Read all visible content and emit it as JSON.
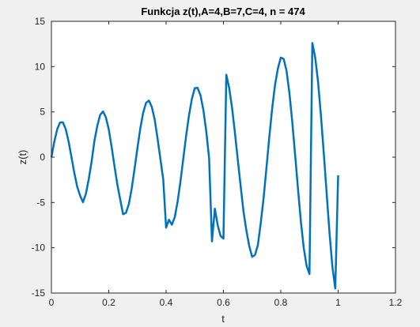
{
  "chart_data": {
    "type": "line",
    "title": "Funkcja z(t),A=4,B=7,C=4, n = 474",
    "xlabel": "t",
    "ylabel": "z(t)",
    "xlim": [
      0,
      1.2
    ],
    "ylim": [
      -15,
      15
    ],
    "xticks": [
      "0",
      "0.2",
      "0.4",
      "0.6",
      "0.8",
      "1",
      "1.2"
    ],
    "yticks": [
      "15",
      "10",
      "5",
      "0",
      "-5",
      "-10",
      "-15"
    ],
    "grid": false,
    "series": [
      {
        "color": "#0072bd",
        "x": [
          0,
          0.01,
          0.02,
          0.03,
          0.04,
          0.05,
          0.06,
          0.07,
          0.08,
          0.09,
          0.1,
          0.11,
          0.12,
          0.13,
          0.14,
          0.15,
          0.16,
          0.17,
          0.18,
          0.19,
          0.2,
          0.21,
          0.22,
          0.23,
          0.24,
          0.25,
          0.26,
          0.27,
          0.28,
          0.29,
          0.3,
          0.31,
          0.32,
          0.33,
          0.34,
          0.35,
          0.36,
          0.37,
          0.38,
          0.39,
          0.4,
          0.41,
          0.42,
          0.43,
          0.44,
          0.45,
          0.46,
          0.47,
          0.48,
          0.49,
          0.5,
          0.51,
          0.52,
          0.53,
          0.54,
          0.55,
          0.56,
          0.57,
          0.58,
          0.59,
          0.6,
          0.61,
          0.62,
          0.63,
          0.64,
          0.65,
          0.66,
          0.67,
          0.68,
          0.69,
          0.7,
          0.71,
          0.72,
          0.73,
          0.74,
          0.75,
          0.76,
          0.77,
          0.78,
          0.79,
          0.8,
          0.81,
          0.82,
          0.83,
          0.84,
          0.85,
          0.86,
          0.87,
          0.88,
          0.89,
          0.9,
          0.91,
          0.92,
          0.93,
          0.94,
          0.95,
          0.96,
          0.97,
          0.98,
          0.99,
          1.0
        ],
        "y": [
          0,
          1.7,
          3.06,
          3.83,
          3.85,
          3.09,
          1.71,
          0,
          -1.76,
          -3.27,
          -4.23,
          -4.97,
          -4.07,
          -2.46,
          -0.52,
          1.81,
          3.46,
          4.67,
          5.05,
          4.4,
          3.07,
          1.13,
          -1.0,
          -3.03,
          -4.69,
          -6.3,
          -6.14,
          -5.19,
          -3.46,
          -1.29,
          1.01,
          3.17,
          4.9,
          6.0,
          6.25,
          5.56,
          4.18,
          2.11,
          -0.17,
          -2.46,
          -7.78,
          -6.91,
          -7.46,
          -6.65,
          -4.94,
          -2.69,
          -0.15,
          2.41,
          4.65,
          6.45,
          7.62,
          7.65,
          6.83,
          5.2,
          2.87,
          -0.13,
          -9.3,
          -5.69,
          -7.53,
          -8.7,
          -8.99,
          9.1,
          7.65,
          5.45,
          2.7,
          -0.28,
          -3.19,
          -6.01,
          -8.1,
          -9.82,
          -11.0,
          -10.8,
          -9.7,
          -7.3,
          -4.52,
          -1.18,
          2.24,
          5.4,
          8.0,
          9.8,
          11.0,
          10.85,
          9.55,
          7.1,
          3.9,
          0.25,
          -3.5,
          -7.1,
          -10.0,
          -12.0,
          -12.9,
          12.6,
          11.0,
          8.3,
          4.6,
          0.4,
          -4.0,
          -8.4,
          -12.1,
          -14.5,
          -2.0
        ]
      }
    ]
  }
}
